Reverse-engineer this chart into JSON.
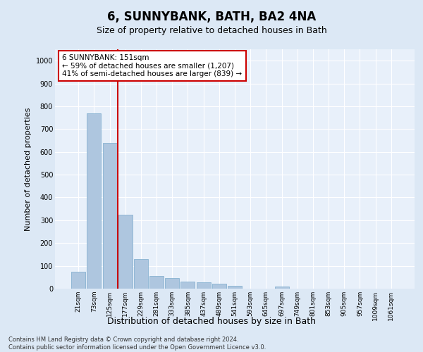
{
  "title": "6, SUNNYBANK, BATH, BA2 4NA",
  "subtitle": "Size of property relative to detached houses in Bath",
  "xlabel": "Distribution of detached houses by size in Bath",
  "ylabel": "Number of detached properties",
  "categories": [
    "21sqm",
    "73sqm",
    "125sqm",
    "177sqm",
    "229sqm",
    "281sqm",
    "333sqm",
    "385sqm",
    "437sqm",
    "489sqm",
    "541sqm",
    "593sqm",
    "645sqm",
    "697sqm",
    "749sqm",
    "801sqm",
    "853sqm",
    "905sqm",
    "957sqm",
    "1009sqm",
    "1061sqm"
  ],
  "values": [
    75,
    770,
    640,
    325,
    130,
    55,
    45,
    32,
    28,
    22,
    12,
    0,
    0,
    10,
    0,
    0,
    0,
    0,
    0,
    0,
    0
  ],
  "bar_color": "#aec6df",
  "bar_edge_color": "#7aaacb",
  "vline_color": "#cc0000",
  "annotation_box_color": "#cc0000",
  "annotation_text_line1": "6 SUNNYBANK: 151sqm",
  "annotation_text_line2": "← 59% of detached houses are smaller (1,207)",
  "annotation_text_line3": "41% of semi-detached houses are larger (839) →",
  "ylim": [
    0,
    1050
  ],
  "yticks": [
    0,
    100,
    200,
    300,
    400,
    500,
    600,
    700,
    800,
    900,
    1000
  ],
  "footer_line1": "Contains HM Land Registry data © Crown copyright and database right 2024.",
  "footer_line2": "Contains public sector information licensed under the Open Government Licence v3.0.",
  "background_color": "#dce8f5",
  "plot_bg_color": "#e8f0fa"
}
